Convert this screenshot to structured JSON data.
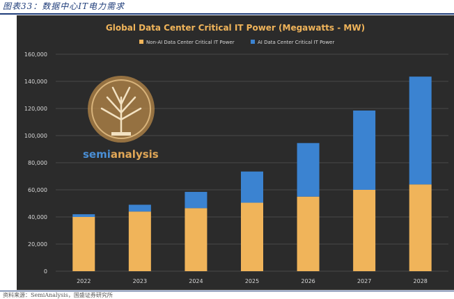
{
  "caption": "图表33：数据中心IT电力需求",
  "source": "资料来源：SemiAnalysis，国盛证券研究所",
  "watermark": {
    "text_left": "semi",
    "text_right": "analysis"
  },
  "colors": {
    "panel_bg": "#2b2b2b",
    "non_ai": "#f0b45a",
    "ai": "#3b83d1",
    "title": "#f0b45a",
    "text": "#d9d9d9",
    "grid": "#4a4a4a"
  },
  "chart_data": {
    "type": "bar",
    "stacked": true,
    "title": "Global Data Center Critical IT Power (Megawatts - MW)",
    "categories": [
      "2022",
      "2023",
      "2024",
      "2025",
      "2026",
      "2027",
      "2028"
    ],
    "series": [
      {
        "name": "Non-AI Data Center Critical IT Power",
        "values": [
          40000,
          44000,
          46500,
          50500,
          55000,
          60000,
          64000
        ]
      },
      {
        "name": "AI Data Center Critical IT Power",
        "values": [
          2000,
          5000,
          12000,
          23000,
          39500,
          58500,
          79500
        ]
      }
    ],
    "y_ticks": [
      "0",
      "20,000",
      "40,000",
      "60,000",
      "80,000",
      "100,000",
      "120,000",
      "140,000",
      "160,000"
    ],
    "ylim": [
      0,
      160000
    ],
    "legend": "top-center",
    "xlabel": "",
    "ylabel": ""
  }
}
